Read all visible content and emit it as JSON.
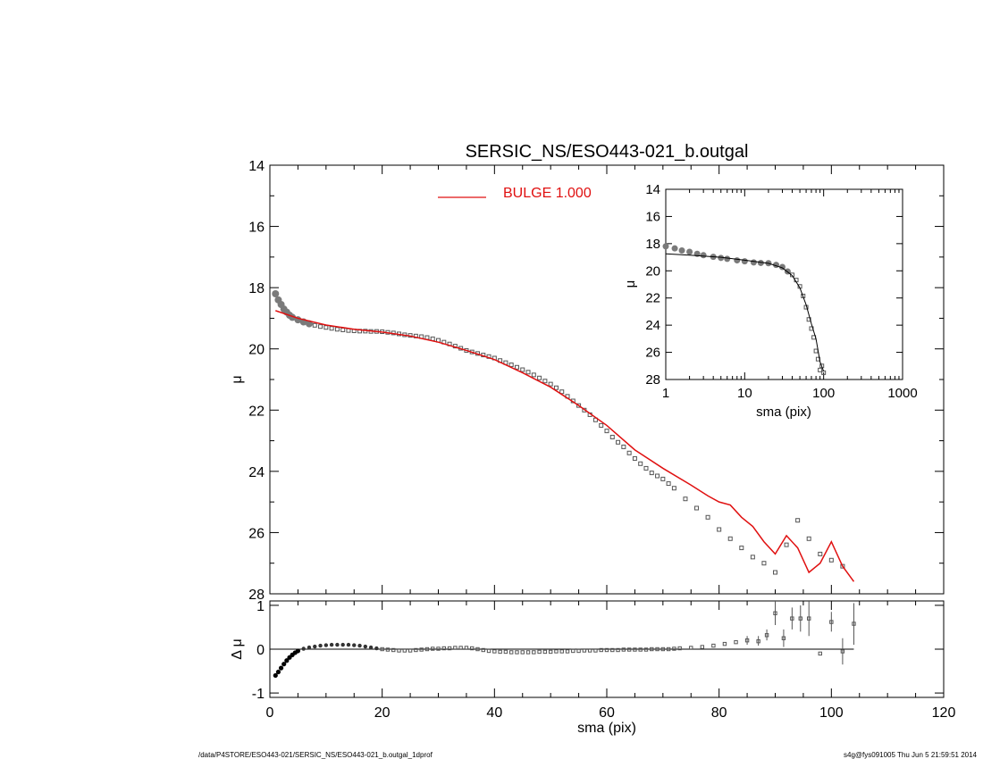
{
  "title": "SERSIC_NS/ESO443-021_b.outgal",
  "footer_left": "/data/P4STORE/ESO443-021/SERSIC_NS/ESO443-021_b.outgal_1dprof",
  "footer_right": "s4g@fys091005  Thu Jun  5 21:59:51 2014",
  "colors": {
    "model": "#e01010",
    "data": "#555555",
    "axis": "#000000"
  },
  "chart_data": [
    {
      "id": "main",
      "type": "scatter",
      "ylabel": "μ",
      "xlim": [
        0,
        120
      ],
      "ylim": [
        28,
        14
      ],
      "yticks": [
        14,
        16,
        18,
        20,
        22,
        24,
        26,
        28
      ],
      "legend": {
        "label": "BULGE  1.000",
        "color": "#e01010",
        "placement": "top"
      },
      "series": [
        {
          "kind": "points",
          "points": [
            [
              1,
              18.2
            ],
            [
              1.5,
              18.4
            ],
            [
              2,
              18.55
            ],
            [
              2.5,
              18.7
            ],
            [
              3,
              18.8
            ],
            [
              3.5,
              18.9
            ],
            [
              4,
              18.97
            ],
            [
              5,
              19.05
            ],
            [
              6,
              19.12
            ],
            [
              7,
              19.18
            ],
            [
              8,
              19.23
            ],
            [
              9,
              19.27
            ],
            [
              10,
              19.3
            ],
            [
              11,
              19.33
            ],
            [
              12,
              19.36
            ],
            [
              13,
              19.38
            ],
            [
              14,
              19.4
            ],
            [
              15,
              19.41
            ],
            [
              16,
              19.42
            ],
            [
              17,
              19.42
            ],
            [
              18,
              19.43
            ],
            [
              19,
              19.43
            ],
            [
              20,
              19.44
            ],
            [
              21,
              19.46
            ],
            [
              22,
              19.48
            ],
            [
              23,
              19.51
            ],
            [
              24,
              19.54
            ],
            [
              25,
              19.56
            ],
            [
              26,
              19.58
            ],
            [
              27,
              19.6
            ],
            [
              28,
              19.63
            ],
            [
              29,
              19.67
            ],
            [
              30,
              19.72
            ],
            [
              31,
              19.78
            ],
            [
              32,
              19.84
            ],
            [
              33,
              19.91
            ],
            [
              34,
              19.98
            ],
            [
              35,
              20.05
            ],
            [
              36,
              20.1
            ],
            [
              37,
              20.15
            ],
            [
              38,
              20.2
            ],
            [
              39,
              20.25
            ],
            [
              40,
              20.3
            ],
            [
              41,
              20.38
            ],
            [
              42,
              20.45
            ],
            [
              43,
              20.52
            ],
            [
              44,
              20.6
            ],
            [
              45,
              20.68
            ],
            [
              46,
              20.76
            ],
            [
              47,
              20.85
            ],
            [
              48,
              20.95
            ],
            [
              49,
              21.05
            ],
            [
              50,
              21.15
            ],
            [
              51,
              21.27
            ],
            [
              52,
              21.4
            ],
            [
              53,
              21.55
            ],
            [
              54,
              21.7
            ],
            [
              55,
              21.85
            ],
            [
              56,
              22.0
            ],
            [
              57,
              22.15
            ],
            [
              58,
              22.32
            ],
            [
              59,
              22.5
            ],
            [
              60,
              22.68
            ],
            [
              61,
              22.88
            ],
            [
              62,
              23.05
            ],
            [
              63,
              23.2
            ],
            [
              64,
              23.4
            ],
            [
              65,
              23.58
            ],
            [
              66,
              23.75
            ],
            [
              67,
              23.9
            ],
            [
              68,
              24.05
            ],
            [
              69,
              24.15
            ],
            [
              70,
              24.25
            ],
            [
              71,
              24.4
            ],
            [
              72,
              24.55
            ],
            [
              74,
              24.9
            ],
            [
              76,
              25.2
            ],
            [
              78,
              25.5
            ],
            [
              80,
              25.9
            ],
            [
              82,
              26.2
            ],
            [
              84,
              26.5
            ],
            [
              86,
              26.8
            ],
            [
              88,
              27.0
            ],
            [
              90,
              27.3
            ],
            [
              92,
              26.4
            ],
            [
              94,
              25.6
            ],
            [
              96,
              26.2
            ],
            [
              98,
              26.7
            ],
            [
              100,
              26.9
            ],
            [
              102,
              27.1
            ]
          ]
        },
        {
          "kind": "line",
          "name": "BULGE  1.000",
          "points": [
            [
              1,
              18.75
            ],
            [
              5,
              19.0
            ],
            [
              10,
              19.22
            ],
            [
              15,
              19.36
            ],
            [
              20,
              19.45
            ],
            [
              25,
              19.58
            ],
            [
              30,
              19.78
            ],
            [
              35,
              20.05
            ],
            [
              40,
              20.35
            ],
            [
              45,
              20.78
            ],
            [
              50,
              21.25
            ],
            [
              55,
              21.85
            ],
            [
              60,
              22.5
            ],
            [
              65,
              23.3
            ],
            [
              70,
              23.9
            ],
            [
              75,
              24.45
            ],
            [
              78,
              24.8
            ],
            [
              80,
              25.0
            ],
            [
              82,
              25.1
            ],
            [
              84,
              25.5
            ],
            [
              86,
              25.8
            ],
            [
              88,
              26.3
            ],
            [
              90,
              26.7
            ],
            [
              92,
              26.1
            ],
            [
              94,
              26.5
            ],
            [
              96,
              27.3
            ],
            [
              98,
              27.0
            ],
            [
              100,
              26.3
            ],
            [
              102,
              27.1
            ],
            [
              104,
              27.6
            ]
          ]
        }
      ]
    },
    {
      "id": "inset",
      "type": "scatter",
      "xlabel": "sma (pix)",
      "ylabel": "μ",
      "xscale": "log",
      "xlim": [
        1,
        1000
      ],
      "ylim": [
        28,
        14
      ],
      "xticks": [
        1,
        10,
        100,
        1000
      ],
      "xtick_labels": [
        "1",
        "10",
        "100",
        "1000"
      ],
      "yticks": [
        14,
        16,
        18,
        20,
        22,
        24,
        26,
        28
      ],
      "series": [
        {
          "kind": "points",
          "points": [
            [
              1,
              18.2
            ],
            [
              1.3,
              18.35
            ],
            [
              1.6,
              18.5
            ],
            [
              2,
              18.6
            ],
            [
              2.5,
              18.75
            ],
            [
              3,
              18.85
            ],
            [
              4,
              18.97
            ],
            [
              5,
              19.05
            ],
            [
              6,
              19.12
            ],
            [
              8,
              19.23
            ],
            [
              10,
              19.3
            ],
            [
              13,
              19.38
            ],
            [
              16,
              19.42
            ],
            [
              20,
              19.44
            ],
            [
              25,
              19.56
            ],
            [
              30,
              19.72
            ],
            [
              35,
              20.05
            ],
            [
              40,
              20.3
            ],
            [
              45,
              20.68
            ],
            [
              50,
              21.15
            ],
            [
              55,
              21.85
            ],
            [
              60,
              22.68
            ],
            [
              65,
              23.58
            ],
            [
              70,
              24.25
            ],
            [
              75,
              24.9
            ],
            [
              80,
              25.9
            ],
            [
              85,
              26.5
            ],
            [
              90,
              27.3
            ],
            [
              95,
              27.0
            ],
            [
              100,
              27.5
            ]
          ]
        },
        {
          "kind": "line",
          "points": [
            [
              1,
              18.75
            ],
            [
              2,
              18.85
            ],
            [
              5,
              19.0
            ],
            [
              10,
              19.22
            ],
            [
              20,
              19.45
            ],
            [
              30,
              19.78
            ],
            [
              40,
              20.35
            ],
            [
              50,
              21.25
            ],
            [
              60,
              22.5
            ],
            [
              70,
              23.9
            ],
            [
              80,
              25.0
            ],
            [
              90,
              26.7
            ],
            [
              100,
              27.4
            ]
          ]
        }
      ]
    },
    {
      "id": "residual",
      "type": "scatter",
      "xlabel": "sma (pix)",
      "ylabel": "Δ μ",
      "xlim": [
        0,
        120
      ],
      "ylim": [
        -1.1,
        1.1
      ],
      "xticks": [
        0,
        20,
        40,
        60,
        80,
        100,
        120
      ],
      "yticks": [
        -1,
        0,
        1
      ],
      "zero_line": true,
      "series": [
        {
          "kind": "points",
          "points": [
            [
              1,
              -0.6
            ],
            [
              1.5,
              -0.52
            ],
            [
              2,
              -0.43
            ],
            [
              2.5,
              -0.34
            ],
            [
              3,
              -0.26
            ],
            [
              3.5,
              -0.19
            ],
            [
              4,
              -0.13
            ],
            [
              4.5,
              -0.08
            ],
            [
              5,
              -0.04
            ],
            [
              6,
              0.01
            ],
            [
              7,
              0.04
            ],
            [
              8,
              0.06
            ],
            [
              9,
              0.08
            ],
            [
              10,
              0.09
            ],
            [
              11,
              0.1
            ],
            [
              12,
              0.1
            ],
            [
              13,
              0.1
            ],
            [
              14,
              0.1
            ],
            [
              15,
              0.09
            ],
            [
              16,
              0.08
            ],
            [
              17,
              0.06
            ],
            [
              18,
              0.04
            ],
            [
              19,
              0.02
            ],
            [
              20,
              0.0
            ],
            [
              21,
              -0.01
            ],
            [
              22,
              -0.02
            ],
            [
              23,
              -0.03
            ],
            [
              24,
              -0.03
            ],
            [
              25,
              -0.03
            ],
            [
              26,
              -0.02
            ],
            [
              27,
              -0.01
            ],
            [
              28,
              0.0
            ],
            [
              29,
              0.01
            ],
            [
              30,
              0.01
            ],
            [
              31,
              0.02
            ],
            [
              32,
              0.02
            ],
            [
              33,
              0.03
            ],
            [
              34,
              0.03
            ],
            [
              35,
              0.03
            ],
            [
              36,
              0.02
            ],
            [
              37,
              0.0
            ],
            [
              38,
              -0.02
            ],
            [
              39,
              -0.04
            ],
            [
              40,
              -0.05
            ],
            [
              41,
              -0.06
            ],
            [
              42,
              -0.06
            ],
            [
              43,
              -0.07
            ],
            [
              44,
              -0.07
            ],
            [
              45,
              -0.07
            ],
            [
              46,
              -0.07
            ],
            [
              47,
              -0.07
            ],
            [
              48,
              -0.06
            ],
            [
              49,
              -0.06
            ],
            [
              50,
              -0.06
            ],
            [
              51,
              -0.05
            ],
            [
              52,
              -0.05
            ],
            [
              53,
              -0.05
            ],
            [
              54,
              -0.04
            ],
            [
              55,
              -0.04
            ],
            [
              56,
              -0.03
            ],
            [
              57,
              -0.03
            ],
            [
              58,
              -0.03
            ],
            [
              59,
              -0.02
            ],
            [
              60,
              -0.02
            ],
            [
              61,
              -0.02
            ],
            [
              62,
              -0.02
            ],
            [
              63,
              -0.01
            ],
            [
              64,
              -0.01
            ],
            [
              65,
              -0.01
            ],
            [
              66,
              -0.01
            ],
            [
              67,
              -0.01
            ],
            [
              68,
              0.0
            ],
            [
              69,
              0.0
            ],
            [
              70,
              0.0
            ],
            [
              71,
              0.0
            ],
            [
              72,
              0.01
            ],
            [
              73,
              0.02
            ],
            [
              75,
              0.03
            ],
            [
              77,
              0.05
            ],
            [
              79,
              0.08
            ],
            [
              81,
              0.12
            ],
            [
              83,
              0.16
            ],
            [
              85,
              0.2
            ],
            [
              87,
              0.18
            ],
            [
              88.5,
              0.32
            ],
            [
              90,
              0.82
            ],
            [
              91.5,
              0.25
            ],
            [
              93,
              0.7
            ],
            [
              94.5,
              0.7
            ],
            [
              96,
              0.7
            ],
            [
              98,
              -0.1
            ],
            [
              100,
              0.62
            ],
            [
              102,
              -0.05
            ],
            [
              104,
              0.58
            ]
          ]
        }
      ],
      "error_bars": [
        [
          85,
          0.1,
          0.3
        ],
        [
          87,
          0.08,
          0.3
        ],
        [
          88.5,
          0.2,
          0.45
        ],
        [
          90,
          0.55,
          1.1
        ],
        [
          91.5,
          0.05,
          0.45
        ],
        [
          93,
          0.45,
          0.95
        ],
        [
          94.5,
          0.4,
          1.0
        ],
        [
          96,
          0.3,
          1.1
        ],
        [
          100,
          0.4,
          0.85
        ],
        [
          102,
          -0.35,
          0.25
        ],
        [
          104,
          0.1,
          1.05
        ]
      ]
    }
  ]
}
